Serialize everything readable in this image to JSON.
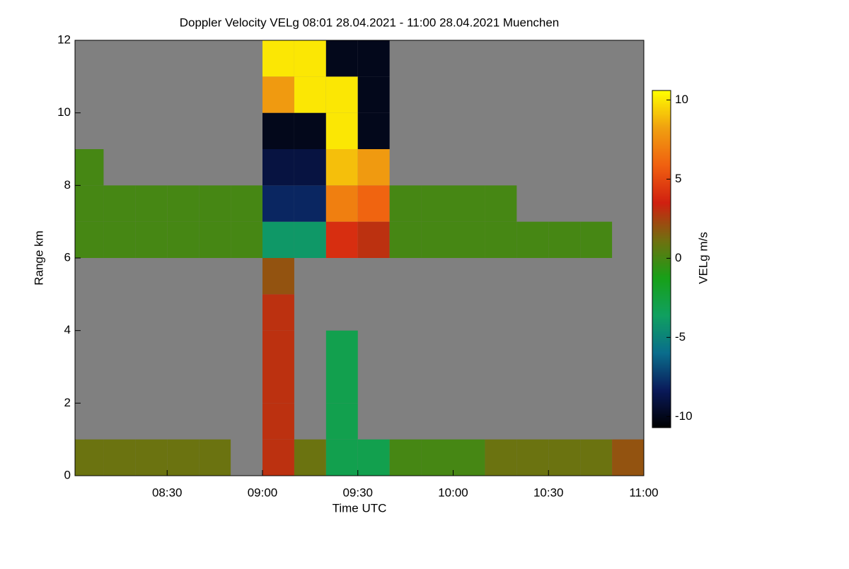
{
  "chart_data": {
    "type": "heatmap",
    "title": "Doppler Velocity VELg   08:01 28.04.2021 - 11:00 28.04.2021 Muenchen",
    "x_label": "Time UTC",
    "y_label": "Range km",
    "colorbar_label": "VELg m/s",
    "x": [
      "08:05",
      "08:15",
      "08:25",
      "08:35",
      "08:45",
      "08:55",
      "09:05",
      "09:15",
      "09:25",
      "09:35",
      "09:45",
      "09:55",
      "10:05",
      "10:15",
      "10:25",
      "10:35",
      "10:45",
      "10:55"
    ],
    "y": [
      0.5,
      1.5,
      2.5,
      3.5,
      4.5,
      5.5,
      6.5,
      7.5,
      8.5,
      9.5,
      10.5,
      11.5
    ],
    "z": [
      [
        1,
        1,
        1,
        1,
        1,
        null,
        3,
        1,
        -3,
        -3,
        0,
        0,
        0,
        1,
        1,
        1,
        1,
        2
      ],
      [
        null,
        null,
        null,
        null,
        null,
        null,
        3,
        null,
        -3,
        null,
        null,
        null,
        null,
        null,
        null,
        null,
        null,
        null
      ],
      [
        null,
        null,
        null,
        null,
        null,
        null,
        3,
        null,
        -3,
        null,
        null,
        null,
        null,
        null,
        null,
        null,
        null,
        null
      ],
      [
        null,
        null,
        null,
        null,
        null,
        null,
        3,
        null,
        -3,
        null,
        null,
        null,
        null,
        null,
        null,
        null,
        null,
        null
      ],
      [
        null,
        null,
        null,
        null,
        null,
        null,
        3,
        null,
        null,
        null,
        null,
        null,
        null,
        null,
        null,
        null,
        null,
        null
      ],
      [
        null,
        null,
        null,
        null,
        null,
        null,
        2,
        null,
        null,
        null,
        null,
        null,
        null,
        null,
        null,
        null,
        null,
        null
      ],
      [
        0,
        0,
        0,
        0,
        0,
        0,
        -4,
        -4,
        4,
        3,
        0,
        0,
        0,
        0,
        0,
        0,
        0,
        null
      ],
      [
        0,
        0,
        0,
        0,
        0,
        0,
        -8,
        -8,
        7,
        6,
        0,
        0,
        0,
        0,
        null,
        null,
        null,
        null
      ],
      [
        0,
        null,
        null,
        null,
        null,
        null,
        -9,
        -9,
        9,
        8,
        null,
        null,
        null,
        null,
        null,
        null,
        null,
        null
      ],
      [
        null,
        null,
        null,
        null,
        null,
        null,
        -10,
        -10,
        10,
        -10,
        null,
        null,
        null,
        null,
        null,
        null,
        null,
        null
      ],
      [
        null,
        null,
        null,
        null,
        null,
        null,
        8,
        10,
        10,
        -10,
        null,
        null,
        null,
        null,
        null,
        null,
        null,
        null
      ],
      [
        null,
        null,
        null,
        null,
        null,
        null,
        10,
        10,
        -10,
        -10,
        null,
        null,
        null,
        null,
        null,
        null,
        null,
        null
      ]
    ],
    "x_cell_minutes": 10,
    "y_cell_km": 1,
    "xlim": [
      "08:01",
      "11:00"
    ],
    "xticks": [
      "08:30",
      "09:00",
      "09:30",
      "10:00",
      "10:30",
      "11:00"
    ],
    "ylim": [
      0,
      12
    ],
    "yticks": [
      0,
      2,
      4,
      6,
      8,
      10,
      12
    ],
    "clim": [
      -10.7,
      10.6
    ],
    "cticks": [
      -10,
      -5,
      0,
      5,
      10
    ],
    "colormap": [
      "#000000",
      "#0a1a5a",
      "#0a6e8c",
      "#10a060",
      "#18a018",
      "#707010",
      "#d02010",
      "#f06010",
      "#f0a010",
      "#ffff00"
    ],
    "missing_color": "#808080"
  }
}
